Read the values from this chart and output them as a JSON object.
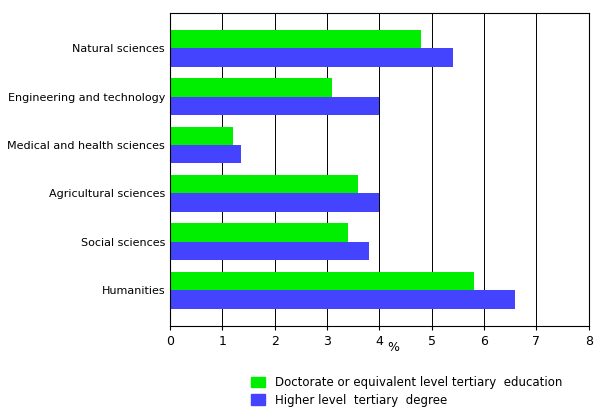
{
  "categories": [
    "Natural sciences",
    "Engineering and technology",
    "Medical and health sciences",
    "Agricultural sciences",
    "Social sciences",
    "Humanities"
  ],
  "doctorate_values": [
    4.8,
    3.1,
    1.2,
    3.6,
    3.4,
    5.8
  ],
  "higher_values": [
    5.4,
    4.0,
    1.35,
    4.0,
    3.8,
    6.6
  ],
  "doctorate_color": "#00ee00",
  "higher_color": "#4444ff",
  "xlabel": "%",
  "xlim": [
    0,
    8
  ],
  "xticks": [
    0,
    1,
    2,
    3,
    4,
    5,
    6,
    7,
    8
  ],
  "legend_labels": [
    "Doctorate or equivalent level tertiary  education",
    "Higher level  tertiary  degree"
  ],
  "bar_height": 0.38,
  "background_color": "#ffffff",
  "grid_color": "#000000",
  "figsize": [
    6.07,
    4.18
  ],
  "dpi": 100
}
